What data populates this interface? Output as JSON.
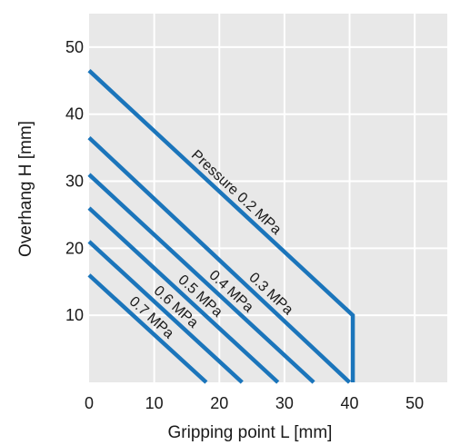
{
  "chart_data": {
    "type": "line",
    "xlabel": "Gripping point L [mm]",
    "ylabel": "Overhang H [mm]",
    "xlim": [
      0,
      55
    ],
    "ylim": [
      0,
      55
    ],
    "xticks": [
      0,
      10,
      20,
      30,
      40,
      50
    ],
    "yticks": [
      10,
      20,
      30,
      40,
      50
    ],
    "grid": true,
    "colors": {
      "plot_bg": "#e8e8e8",
      "grid": "#ffffff",
      "line": "#1b75bb",
      "text": "#1a1a1a"
    },
    "series": [
      {
        "name": "Pressure 0.2 MPa",
        "points": [
          [
            0,
            46.5
          ],
          [
            40.5,
            10
          ],
          [
            40.5,
            0
          ]
        ]
      },
      {
        "name": "0.3 MPa",
        "points": [
          [
            0,
            36.5
          ],
          [
            40,
            0
          ]
        ]
      },
      {
        "name": "0.4 MPa",
        "points": [
          [
            0,
            31
          ],
          [
            34.5,
            0
          ]
        ]
      },
      {
        "name": "0.5 MPa",
        "points": [
          [
            0,
            26
          ],
          [
            29,
            0
          ]
        ]
      },
      {
        "name": "0.6 MPa",
        "points": [
          [
            0,
            21
          ],
          [
            23.5,
            0
          ]
        ]
      },
      {
        "name": "0.7 MPa",
        "points": [
          [
            0,
            16
          ],
          [
            18,
            0
          ]
        ]
      }
    ]
  }
}
